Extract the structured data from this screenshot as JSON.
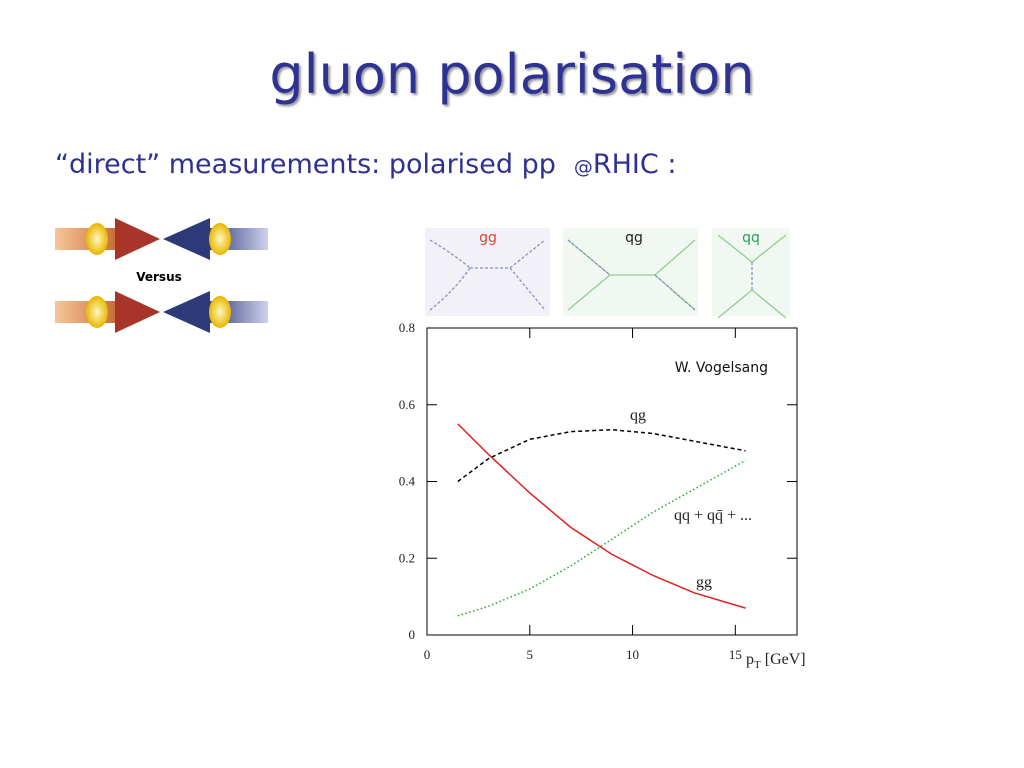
{
  "slide": {
    "title": "gluon polarisation",
    "subtitle": [
      "“direct” measurements: polarised pp",
      "@",
      "RHIC :"
    ],
    "versus": "Versus",
    "diagrams": [
      {
        "label": "gg",
        "color": "#d9443a"
      },
      {
        "label": "qg",
        "color": "#222222"
      },
      {
        "label": "qq",
        "color": "#2aa05a"
      }
    ]
  },
  "chart_data": {
    "type": "line",
    "x": [
      1.5,
      3,
      5,
      7,
      9,
      11,
      13,
      15.5
    ],
    "series": [
      {
        "name": "qg",
        "color": "#000000",
        "style": "dashed",
        "values": [
          0.4,
          0.46,
          0.51,
          0.53,
          0.535,
          0.525,
          0.505,
          0.48
        ]
      },
      {
        "name": "qq + qq̄ + ...",
        "color": "#22aa33",
        "style": "dotted",
        "values": [
          0.05,
          0.075,
          0.12,
          0.18,
          0.25,
          0.32,
          0.38,
          0.455
        ]
      },
      {
        "name": "gg",
        "color": "#e02020",
        "style": "solid",
        "values": [
          0.55,
          0.47,
          0.37,
          0.28,
          0.21,
          0.155,
          0.11,
          0.07
        ]
      }
    ],
    "annotation": "W. Vogelsang",
    "xlabel": [
      "p",
      "T",
      "[GeV]"
    ],
    "xlim": [
      0,
      18
    ],
    "xticks": [
      0,
      5,
      10,
      15
    ],
    "ylim": [
      0,
      0.8
    ],
    "yticks": [
      0,
      0.2,
      0.4,
      0.6,
      0.8
    ]
  }
}
